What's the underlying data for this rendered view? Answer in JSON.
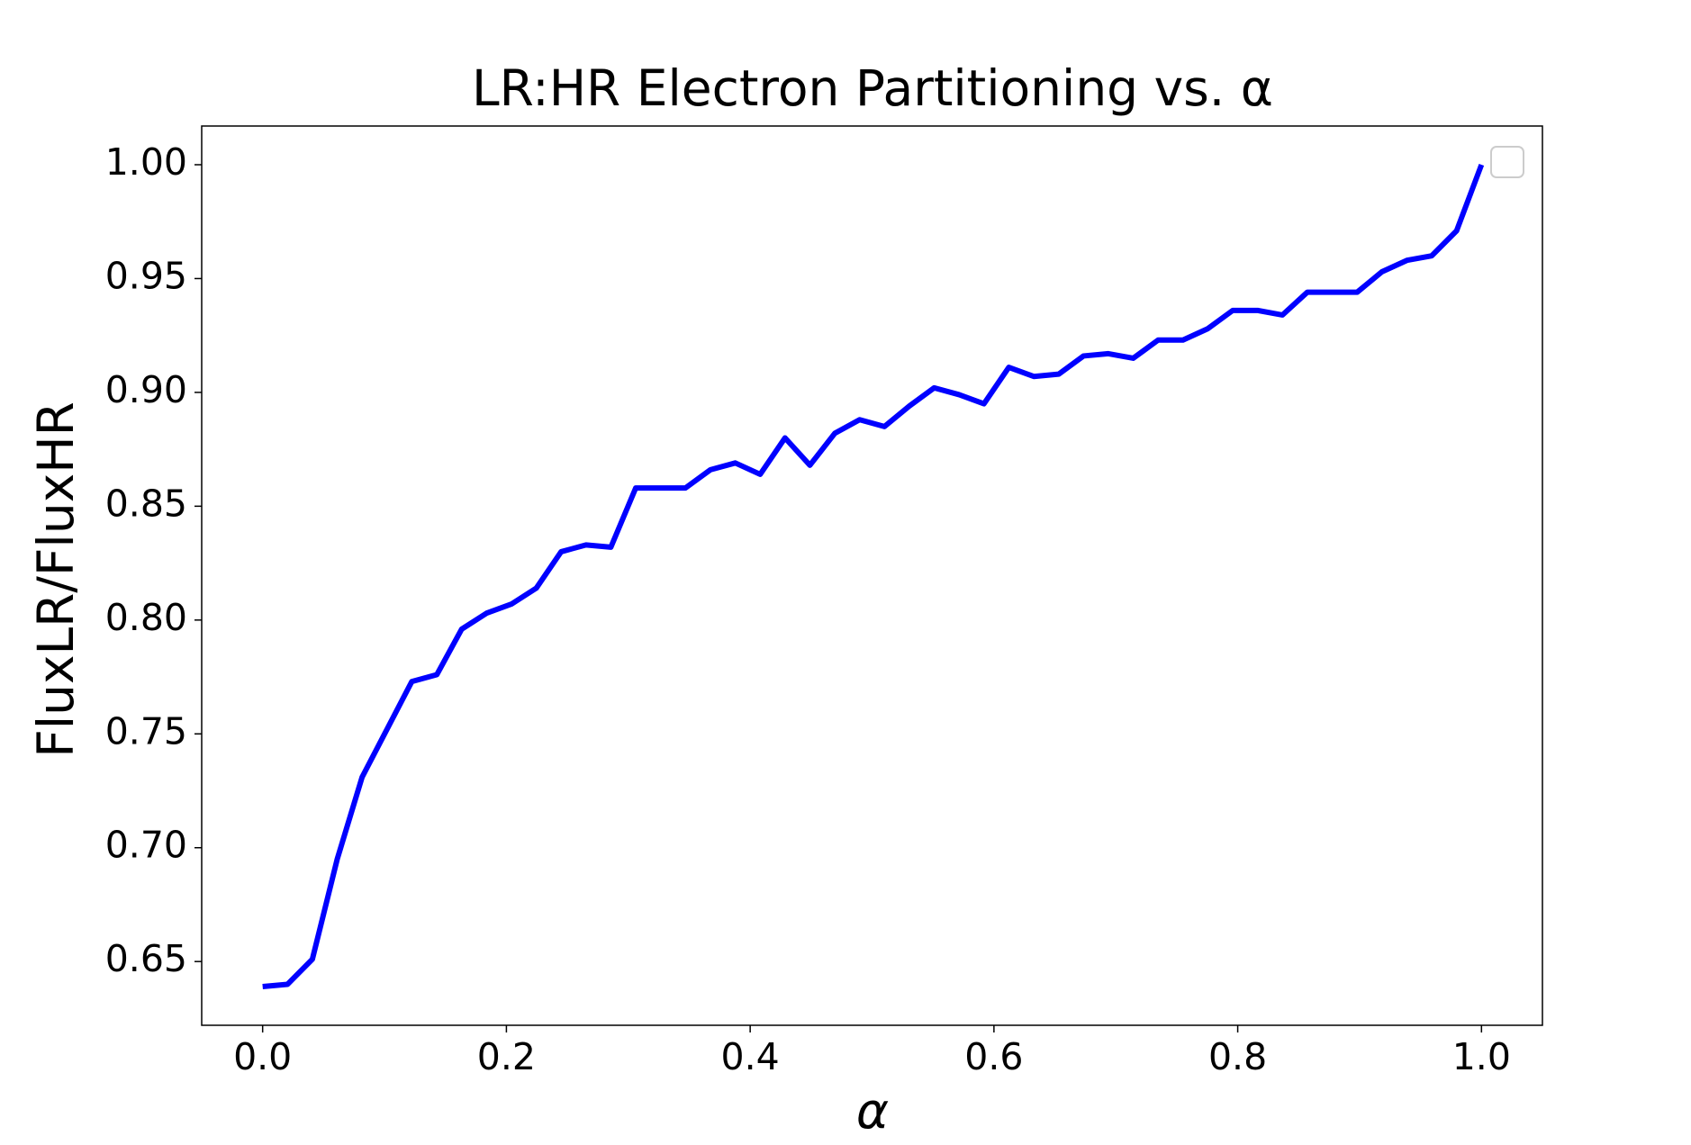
{
  "chart_data": {
    "type": "line",
    "title": "LR:HR Electron Partitioning vs. α",
    "xlabel": "α",
    "ylabel": "FluxLR/FluxHR",
    "x": [
      0,
      0.0204,
      0.0408,
      0.0612,
      0.0816,
      0.102,
      0.1224,
      0.1429,
      0.1633,
      0.1837,
      0.2041,
      0.2245,
      0.2449,
      0.2653,
      0.2857,
      0.3061,
      0.3265,
      0.3469,
      0.3673,
      0.3878,
      0.4082,
      0.4286,
      0.449,
      0.4694,
      0.4898,
      0.5102,
      0.5306,
      0.551,
      0.5714,
      0.5918,
      0.6122,
      0.6327,
      0.6531,
      0.6735,
      0.6939,
      0.7143,
      0.7347,
      0.7551,
      0.7755,
      0.7959,
      0.8163,
      0.8367,
      0.8571,
      0.8776,
      0.898,
      0.9184,
      0.9388,
      0.9592,
      0.9796,
      1.0
    ],
    "series": [
      {
        "color": "#0000ff",
        "values": [
          0.639,
          0.64,
          0.651,
          0.695,
          0.731,
          0.752,
          0.773,
          0.776,
          0.796,
          0.803,
          0.807,
          0.814,
          0.83,
          0.833,
          0.832,
          0.858,
          0.858,
          0.858,
          0.866,
          0.869,
          0.864,
          0.88,
          0.868,
          0.882,
          0.888,
          0.885,
          0.894,
          0.902,
          0.899,
          0.895,
          0.911,
          0.907,
          0.908,
          0.916,
          0.917,
          0.915,
          0.923,
          0.923,
          0.928,
          0.936,
          0.936,
          0.934,
          0.944,
          0.944,
          0.944,
          0.953,
          0.958,
          0.96,
          0.971,
          1.0
        ]
      }
    ],
    "xlim": [
      -0.05,
      1.05
    ],
    "ylim": [
      0.622,
      1.017
    ],
    "xticks": [
      {
        "value": 0,
        "label": "0.0"
      },
      0.2,
      0.4,
      0.6,
      0.8,
      {
        "value": 1,
        "label": "1.0"
      }
    ],
    "yticks": [
      0.65,
      {
        "value": 0.7,
        "label": "0.70"
      },
      0.75,
      {
        "value": 0.8,
        "label": "0.80"
      },
      0.85,
      {
        "value": 0.9,
        "label": "0.90"
      },
      0.95,
      {
        "value": 1,
        "label": "1.00"
      }
    ],
    "grid": false
  }
}
